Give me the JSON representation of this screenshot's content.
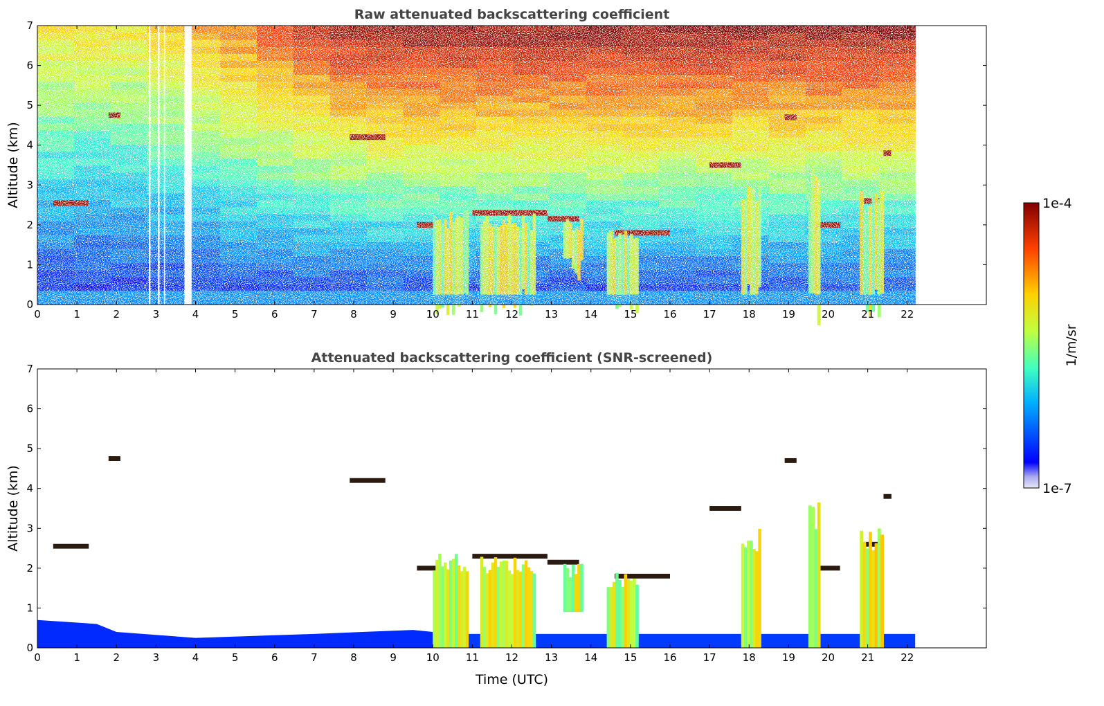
{
  "chart_data": [
    {
      "type": "heatmap",
      "title": "Raw attenuated backscattering coefficient",
      "xlabel": "",
      "ylabel": "Altitude (km)",
      "xlim": [
        0,
        24
      ],
      "ylim": [
        0,
        7
      ],
      "x_ticks": [
        "0",
        "1",
        "2",
        "3",
        "4",
        "5",
        "6",
        "7",
        "8",
        "9",
        "10",
        "11",
        "12",
        "13",
        "14",
        "15",
        "16",
        "17",
        "18",
        "19",
        "20",
        "21",
        "22"
      ],
      "y_ticks": [
        "0",
        "1",
        "2",
        "3",
        "4",
        "5",
        "6",
        "7"
      ],
      "data_extent_hours": [
        0,
        22.2
      ],
      "missing_data_gaps_hours": [
        [
          2.82,
          2.86
        ],
        [
          3.05,
          3.09
        ],
        [
          3.2,
          3.23
        ],
        [
          3.72,
          3.9
        ]
      ],
      "features": [
        {
          "kind": "cloud layer",
          "t": [
            0.4,
            1.3
          ],
          "alt": 2.55
        },
        {
          "kind": "cloud layer",
          "t": [
            1.8,
            2.1
          ],
          "alt": 4.75
        },
        {
          "kind": "cloud layer",
          "t": [
            7.9,
            8.8
          ],
          "alt": 4.2
        },
        {
          "kind": "cloud layer",
          "t": [
            9.6,
            10.1
          ],
          "alt": 2.0
        },
        {
          "kind": "cloud layer",
          "t": [
            11.0,
            12.9
          ],
          "alt": 2.3
        },
        {
          "kind": "cloud layer",
          "t": [
            12.9,
            13.7
          ],
          "alt": 2.15
        },
        {
          "kind": "cloud layer",
          "t": [
            14.6,
            16.0
          ],
          "alt": 1.8
        },
        {
          "kind": "cloud layer",
          "t": [
            17.0,
            17.8
          ],
          "alt": 3.5
        },
        {
          "kind": "cloud layer",
          "t": [
            18.9,
            19.2
          ],
          "alt": 4.7
        },
        {
          "kind": "cloud layer",
          "t": [
            19.7,
            20.3
          ],
          "alt": 2.0
        },
        {
          "kind": "cloud layer",
          "t": [
            20.9,
            21.3
          ],
          "alt": 2.6
        },
        {
          "kind": "cloud layer",
          "t": [
            21.4,
            21.6
          ],
          "alt": 3.8
        },
        {
          "kind": "precipitation",
          "t": [
            10.0,
            10.9
          ],
          "alt": [
            0,
            2.4
          ]
        },
        {
          "kind": "precipitation",
          "t": [
            11.2,
            12.6
          ],
          "alt": [
            0,
            2.3
          ]
        },
        {
          "kind": "precipitation",
          "t": [
            13.3,
            13.8
          ],
          "alt": [
            0.9,
            2.2
          ]
        },
        {
          "kind": "precipitation",
          "t": [
            14.4,
            15.2
          ],
          "alt": [
            0,
            1.9
          ]
        },
        {
          "kind": "precipitation",
          "t": [
            17.8,
            18.3
          ],
          "alt": [
            0,
            3.0
          ]
        },
        {
          "kind": "precipitation",
          "t": [
            19.5,
            19.8
          ],
          "alt": [
            0,
            3.7
          ]
        },
        {
          "kind": "precipitation",
          "t": [
            20.8,
            21.4
          ],
          "alt": [
            0,
            3.0
          ]
        }
      ]
    },
    {
      "type": "heatmap",
      "title": "Attenuated backscattering coefficient (SNR-screened)",
      "xlabel": "Time (UTC)",
      "ylabel": "Altitude (km)",
      "xlim": [
        0,
        24
      ],
      "ylim": [
        0,
        7
      ],
      "x_ticks": [
        "0",
        "1",
        "2",
        "3",
        "4",
        "5",
        "6",
        "7",
        "8",
        "9",
        "10",
        "11",
        "12",
        "13",
        "14",
        "15",
        "16",
        "17",
        "18",
        "19",
        "20",
        "21",
        "22"
      ],
      "y_ticks": [
        "0",
        "1",
        "2",
        "3",
        "4",
        "5",
        "6",
        "7"
      ],
      "data_extent_hours": [
        0,
        22.2
      ],
      "boundary_layer_top_km": [
        [
          0,
          0.7
        ],
        [
          1.5,
          0.6
        ],
        [
          2.0,
          0.4
        ],
        [
          4.0,
          0.25
        ],
        [
          7.0,
          0.35
        ],
        [
          9.5,
          0.45
        ],
        [
          10.0,
          0.4
        ]
      ]
    }
  ],
  "colorbar": {
    "label": "1/m/sr",
    "max_label": "1e-4",
    "min_label": "1e-7",
    "scale": "log",
    "range": [
      1e-07,
      0.0001
    ],
    "colormap": "jet",
    "colors": [
      "#e8e8f8",
      "#0000ff",
      "#00b0ff",
      "#40ffc0",
      "#c0ff40",
      "#ffd000",
      "#ff4000",
      "#800000"
    ]
  }
}
